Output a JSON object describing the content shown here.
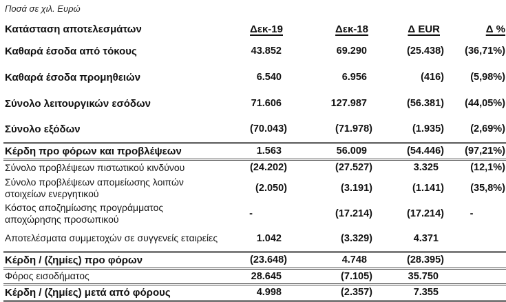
{
  "note": "Ποσά σε χιλ. Ευρώ",
  "table": {
    "title": "Κατάσταση αποτελεσμάτων",
    "columns": [
      "Δεκ-19",
      "Δεκ-18",
      "Δ EUR",
      "Δ %"
    ],
    "rule_color": "#4d4d4d",
    "rows": [
      {
        "label": "Καθαρά έσοδα από τόκους",
        "values": [
          "43.852",
          "69.290",
          "(25.438)",
          "(36,71%)"
        ],
        "variant": "bold",
        "rules": []
      },
      {
        "label": "Καθαρά έσοδα προμηθειών",
        "values": [
          "6.540",
          "6.956",
          "(416)",
          "(5,98%)"
        ],
        "variant": "bold",
        "rules": []
      },
      {
        "label": "Σύνολο λειτουργικών εσόδων",
        "values": [
          "71.606",
          "127.987",
          "(56.381)",
          "(44,05%)"
        ],
        "variant": "bold",
        "rules": []
      },
      {
        "label": "Σύνολο εξόδων",
        "values": [
          "(70.043)",
          "(71.978)",
          "(1.935)",
          "(2,69%)"
        ],
        "variant": "bold",
        "rules": []
      },
      {
        "label": "Κέρδη προ φόρων και προβλέψεων",
        "values": [
          "1.563",
          "56.009",
          "(54.446)",
          "(97,21%)"
        ],
        "variant": "total",
        "rules": [
          "top",
          "bottom"
        ]
      },
      {
        "label": "Σύνολο προβλέψεων πιστωτικού κινδύνου",
        "values": [
          "(24.202)",
          "(27.527)",
          "3.325",
          "(12,1%)"
        ],
        "variant": "plain",
        "rules": []
      },
      {
        "label": "Σύνολο προβλέψεων απομείωσης λοιπών στοιχείων ενεργητικού",
        "values": [
          "(2.050)",
          "(3.191)",
          "(1.141)",
          "(35,8%)"
        ],
        "variant": "plain",
        "rules": []
      },
      {
        "label": "Κόστος αποζημίωσης προγράμματος αποχώρησης προσωπικού",
        "values": [
          "-",
          "(17.214)",
          "(17.214)",
          "-"
        ],
        "variant": "plain",
        "rules": []
      },
      {
        "label": "Αποτελέσματα συμμετοχών σε συγγενείς εταιρείες",
        "values": [
          "1.042",
          "(3.329)",
          "4.371",
          ""
        ],
        "variant": "plain",
        "rules": []
      },
      {
        "label": "Κέρδη / (ζημίες) προ φόρων",
        "values": [
          "(23.648)",
          "4.748",
          "(28.395)",
          ""
        ],
        "variant": "total",
        "rules": [
          "top",
          "bottom"
        ]
      },
      {
        "label": "Φόρος εισοδήματος",
        "values": [
          "28.645",
          "(7.105)",
          "35.750",
          ""
        ],
        "variant": "plain",
        "rules": [
          "bottom"
        ]
      },
      {
        "label": "Κέρδη / (ζημίες) μετά από φόρους",
        "values": [
          "4.998",
          "(2.357)",
          "7.355",
          ""
        ],
        "variant": "total",
        "rules": [
          "bottom"
        ]
      }
    ]
  }
}
